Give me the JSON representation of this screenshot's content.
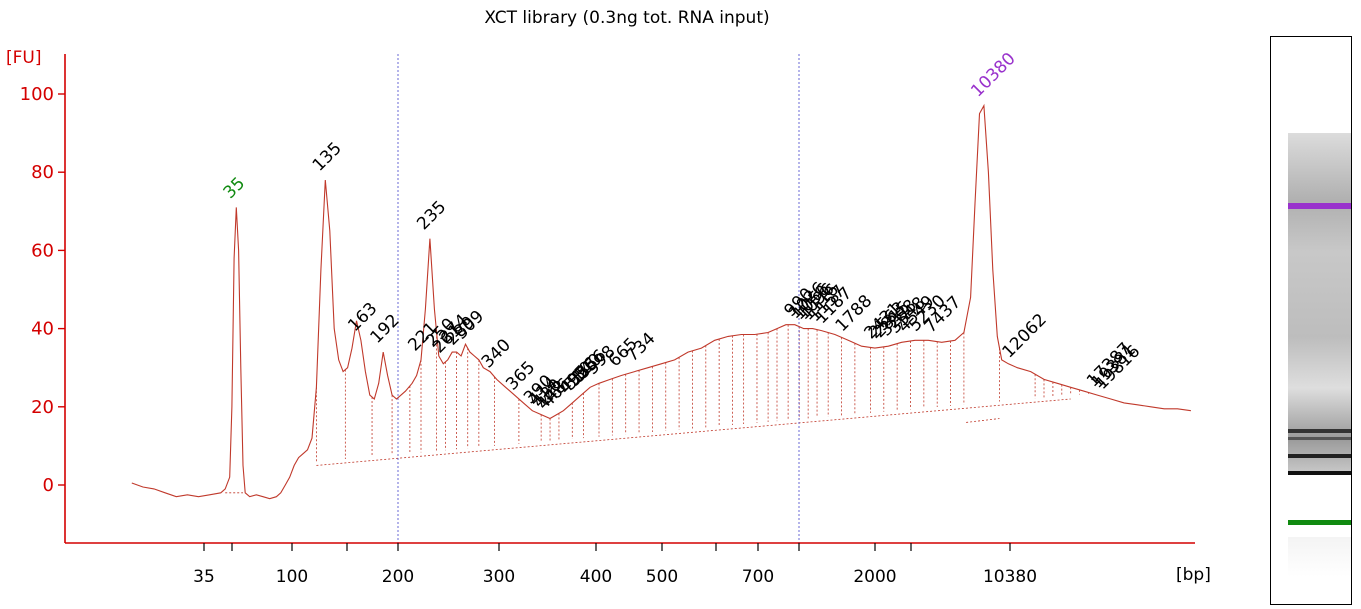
{
  "chart_data": {
    "type": "line",
    "title": "XCT library (0.3ng tot. RNA input)",
    "ylabel": "[FU]",
    "xlabel": "[bp]",
    "ylim": [
      -15,
      110
    ],
    "y_ticks": [
      0,
      20,
      40,
      60,
      80,
      100
    ],
    "x_tick_labels": [
      "35",
      "100",
      "200",
      "300",
      "400",
      "500",
      "700",
      "2000",
      "10380"
    ],
    "trace_color": "#c0392b",
    "axis_color": "#d40000",
    "marker_lower": {
      "label": "35",
      "color": "#108a10"
    },
    "marker_upper": {
      "label": "10380",
      "color": "#9932cc"
    },
    "series": [
      {
        "points": [
          [
            30,
            0.5
          ],
          [
            35,
            -0.5
          ],
          [
            40,
            -1
          ],
          [
            45,
            -2
          ],
          [
            50,
            -3
          ],
          [
            55,
            -2.5
          ],
          [
            60,
            -3
          ],
          [
            65,
            -2.5
          ],
          [
            70,
            -2
          ],
          [
            72,
            -1
          ],
          [
            74,
            2
          ],
          [
            75,
            20
          ],
          [
            76,
            58
          ],
          [
            77,
            71
          ],
          [
            78,
            60
          ],
          [
            79,
            30
          ],
          [
            80,
            5
          ],
          [
            81,
            -2
          ],
          [
            83,
            -3
          ],
          [
            86,
            -2.5
          ],
          [
            89,
            -3
          ],
          [
            92,
            -3.5
          ],
          [
            95,
            -3
          ],
          [
            97,
            -2
          ],
          [
            99,
            0
          ],
          [
            101,
            2
          ],
          [
            103,
            5
          ],
          [
            105,
            7
          ],
          [
            107,
            8
          ],
          [
            109,
            9
          ],
          [
            111,
            12
          ],
          [
            113,
            25
          ],
          [
            115,
            55
          ],
          [
            117,
            78
          ],
          [
            119,
            65
          ],
          [
            121,
            40
          ],
          [
            123,
            32
          ],
          [
            125,
            29
          ],
          [
            127,
            30
          ],
          [
            129,
            35
          ],
          [
            131,
            42
          ],
          [
            133,
            37
          ],
          [
            135,
            29
          ],
          [
            137,
            23
          ],
          [
            139,
            22
          ],
          [
            141,
            26
          ],
          [
            143,
            34
          ],
          [
            145,
            28
          ],
          [
            147,
            23
          ],
          [
            149,
            22
          ],
          [
            151,
            23
          ],
          [
            153,
            24
          ],
          [
            156,
            26
          ],
          [
            158,
            28
          ],
          [
            160,
            32
          ],
          [
            162,
            45
          ],
          [
            164,
            63
          ],
          [
            166,
            45
          ],
          [
            168,
            33
          ],
          [
            170,
            31
          ],
          [
            172,
            32
          ],
          [
            174,
            34
          ],
          [
            176,
            34
          ],
          [
            178,
            33
          ],
          [
            180,
            36
          ],
          [
            182,
            34
          ],
          [
            184,
            33
          ],
          [
            186,
            32
          ],
          [
            188,
            30
          ],
          [
            191,
            29
          ],
          [
            194,
            27
          ],
          [
            198,
            25
          ],
          [
            202,
            23
          ],
          [
            206,
            21
          ],
          [
            210,
            19
          ],
          [
            214,
            18
          ],
          [
            218,
            17
          ],
          [
            221,
            18
          ],
          [
            224,
            19
          ],
          [
            228,
            21
          ],
          [
            232,
            23
          ],
          [
            236,
            25
          ],
          [
            240,
            26
          ],
          [
            245,
            27
          ],
          [
            250,
            28
          ],
          [
            256,
            29
          ],
          [
            262,
            30
          ],
          [
            268,
            31
          ],
          [
            274,
            32
          ],
          [
            280,
            34
          ],
          [
            286,
            35
          ],
          [
            292,
            37
          ],
          [
            298,
            38
          ],
          [
            304,
            38.5
          ],
          [
            310,
            38.5
          ],
          [
            316,
            39
          ],
          [
            320,
            40
          ],
          [
            324,
            41
          ],
          [
            328,
            41
          ],
          [
            332,
            40
          ],
          [
            336,
            40
          ],
          [
            340,
            39.5
          ],
          [
            346,
            38.5
          ],
          [
            352,
            37
          ],
          [
            358,
            35.5
          ],
          [
            364,
            35
          ],
          [
            370,
            35.5
          ],
          [
            376,
            36.5
          ],
          [
            382,
            37
          ],
          [
            388,
            37
          ],
          [
            394,
            36.5
          ],
          [
            400,
            37
          ],
          [
            404,
            39
          ],
          [
            407,
            48
          ],
          [
            409,
            72
          ],
          [
            411,
            95
          ],
          [
            413,
            97
          ],
          [
            415,
            80
          ],
          [
            417,
            55
          ],
          [
            419,
            38
          ],
          [
            421,
            32
          ],
          [
            424,
            31
          ],
          [
            428,
            30
          ],
          [
            434,
            29
          ],
          [
            440,
            27
          ],
          [
            446,
            26
          ],
          [
            452,
            25
          ],
          [
            458,
            24
          ],
          [
            464,
            23
          ],
          [
            470,
            22
          ],
          [
            476,
            21
          ],
          [
            482,
            20.5
          ],
          [
            488,
            20
          ],
          [
            494,
            19.5
          ],
          [
            500,
            19.5
          ],
          [
            506,
            19
          ]
        ]
      }
    ]
  },
  "peak_labels": [
    "35",
    "135",
    "163",
    "192",
    "221",
    "235",
    "250",
    "261",
    "274",
    "289",
    "309",
    "340",
    "365",
    "390",
    "414",
    "430",
    "448",
    "466",
    "495",
    "510",
    "526",
    "540",
    "556",
    "598",
    "665",
    "734",
    "990",
    "1026",
    "1056",
    "1096",
    "1116",
    "1157",
    "1187",
    "1788",
    "2431",
    "2563",
    "2815",
    "3298",
    "3548",
    "4549",
    "5230",
    "7437",
    "10380",
    "12062",
    "17387",
    "19381",
    "19816"
  ]
}
